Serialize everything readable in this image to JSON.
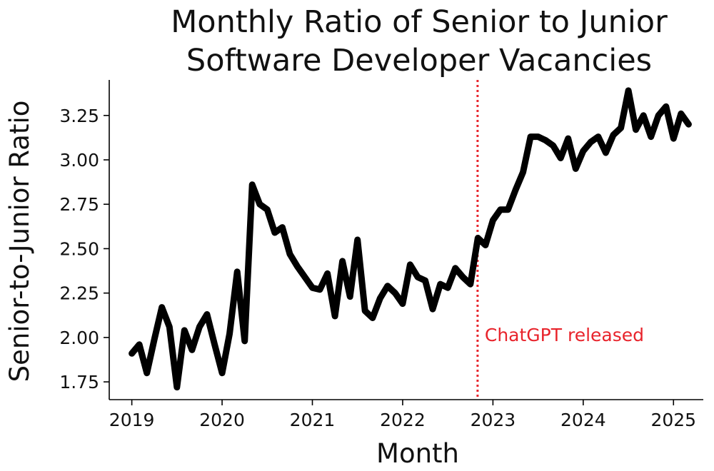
{
  "chart_data": {
    "type": "line",
    "title_lines": [
      "Monthly Ratio of Senior to Junior",
      "Software Developer Vacancies"
    ],
    "xlabel": "Month",
    "ylabel": "Senior-to-Junior Ratio",
    "xlim": [
      2018.75,
      2025.33
    ],
    "ylim": [
      1.65,
      3.45
    ],
    "x_ticks": [
      2019,
      2020,
      2021,
      2022,
      2023,
      2024,
      2025
    ],
    "x_tick_labels": [
      "2019",
      "2020",
      "2021",
      "2022",
      "2023",
      "2024",
      "2025"
    ],
    "y_ticks": [
      1.75,
      2.0,
      2.25,
      2.5,
      2.75,
      3.0,
      3.25
    ],
    "y_tick_labels": [
      "1.75",
      "2.00",
      "2.25",
      "2.50",
      "2.75",
      "3.00",
      "3.25"
    ],
    "grid": false,
    "line_color": "#000000",
    "annotation": {
      "x": 2022.83,
      "label": "ChatGPT released",
      "color": "#e8232b"
    },
    "series": [
      {
        "x": [
          2019.0,
          2019.083,
          2019.167,
          2019.25,
          2019.333,
          2019.417,
          2019.5,
          2019.583,
          2019.667,
          2019.75,
          2019.833,
          2019.917,
          2020.0,
          2020.083,
          2020.167,
          2020.25,
          2020.333,
          2020.417,
          2020.5,
          2020.583,
          2020.667,
          2020.75,
          2020.833,
          2020.917,
          2021.0,
          2021.083,
          2021.167,
          2021.25,
          2021.333,
          2021.417,
          2021.5,
          2021.583,
          2021.667,
          2021.75,
          2021.833,
          2021.917,
          2022.0,
          2022.083,
          2022.167,
          2022.25,
          2022.333,
          2022.417,
          2022.5,
          2022.583,
          2022.667,
          2022.75,
          2022.833,
          2022.917,
          2023.0,
          2023.083,
          2023.167,
          2023.25,
          2023.333,
          2023.417,
          2023.5,
          2023.583,
          2023.667,
          2023.75,
          2023.833,
          2023.917,
          2024.0,
          2024.083,
          2024.167,
          2024.25,
          2024.333,
          2024.417,
          2024.5,
          2024.583,
          2024.667,
          2024.75,
          2024.833,
          2024.917,
          2025.0,
          2025.083,
          2025.167
        ],
        "values": [
          1.91,
          1.96,
          1.8,
          1.99,
          2.17,
          2.06,
          1.72,
          2.04,
          1.93,
          2.06,
          2.13,
          1.96,
          1.8,
          2.02,
          2.37,
          1.98,
          2.86,
          2.75,
          2.72,
          2.59,
          2.62,
          2.47,
          2.4,
          2.34,
          2.28,
          2.27,
          2.36,
          2.12,
          2.43,
          2.23,
          2.55,
          2.15,
          2.11,
          2.22,
          2.29,
          2.25,
          2.19,
          2.41,
          2.34,
          2.32,
          2.16,
          2.3,
          2.28,
          2.39,
          2.34,
          2.3,
          2.56,
          2.52,
          2.66,
          2.72,
          2.72,
          2.83,
          2.93,
          3.13,
          3.13,
          3.11,
          3.08,
          3.01,
          3.12,
          2.95,
          3.05,
          3.1,
          3.13,
          3.04,
          3.14,
          3.18,
          3.39,
          3.17,
          3.25,
          3.13,
          3.25,
          3.3,
          3.12,
          3.26,
          3.2
        ]
      }
    ]
  }
}
